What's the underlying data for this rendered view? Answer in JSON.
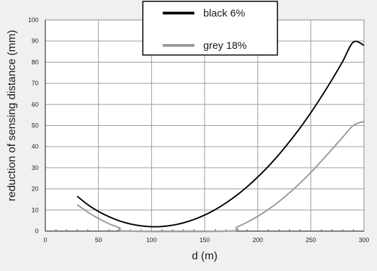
{
  "chart_data": {
    "type": "line",
    "xlabel": "d (m)",
    "ylabel": "reduction of sensing distance (mm)",
    "xlim": [
      0,
      300
    ],
    "ylim": [
      0,
      100
    ],
    "x_ticks": [
      "0",
      "50",
      "100",
      "150",
      "200",
      "250",
      "300"
    ],
    "y_ticks": [
      "0",
      "10",
      "20",
      "30",
      "40",
      "50",
      "60",
      "70",
      "80",
      "90",
      "100"
    ],
    "grid": true,
    "legend_position": "top-center",
    "series": [
      {
        "name": "black 6%",
        "color": "#000000",
        "points": [
          [
            30,
            16.5
          ],
          [
            40,
            12.5
          ],
          [
            50,
            9.3
          ],
          [
            60,
            6.8
          ],
          [
            70,
            4.8
          ],
          [
            80,
            3.4
          ],
          [
            90,
            2.5
          ],
          [
            100,
            2.1
          ],
          [
            110,
            2.2
          ],
          [
            120,
            2.8
          ],
          [
            130,
            3.9
          ],
          [
            140,
            5.5
          ],
          [
            150,
            7.6
          ],
          [
            160,
            10.2
          ],
          [
            170,
            13.3
          ],
          [
            180,
            16.9
          ],
          [
            190,
            21.0
          ],
          [
            200,
            25.6
          ],
          [
            210,
            30.7
          ],
          [
            220,
            36.3
          ],
          [
            230,
            42.4
          ],
          [
            240,
            49.0
          ],
          [
            250,
            56.1
          ],
          [
            260,
            63.7
          ],
          [
            270,
            71.8
          ],
          [
            280,
            80.4
          ],
          [
            290,
            89.5
          ],
          [
            300,
            88.0
          ]
        ]
      },
      {
        "name": "grey 18%",
        "color": "#999999",
        "points": [
          [
            30,
            12.5
          ],
          [
            40,
            9.0
          ],
          [
            50,
            6.0
          ],
          [
            60,
            3.5
          ],
          [
            70,
            1.5
          ],
          [
            78,
            0.0
          ],
          [
            172,
            0.0
          ],
          [
            180,
            1.8
          ],
          [
            190,
            4.2
          ],
          [
            200,
            7.0
          ],
          [
            210,
            10.3
          ],
          [
            220,
            14.0
          ],
          [
            230,
            18.2
          ],
          [
            240,
            22.8
          ],
          [
            250,
            27.8
          ],
          [
            260,
            33.2
          ],
          [
            270,
            38.8
          ],
          [
            280,
            44.5
          ],
          [
            290,
            50.0
          ],
          [
            300,
            52.0
          ]
        ]
      }
    ]
  }
}
